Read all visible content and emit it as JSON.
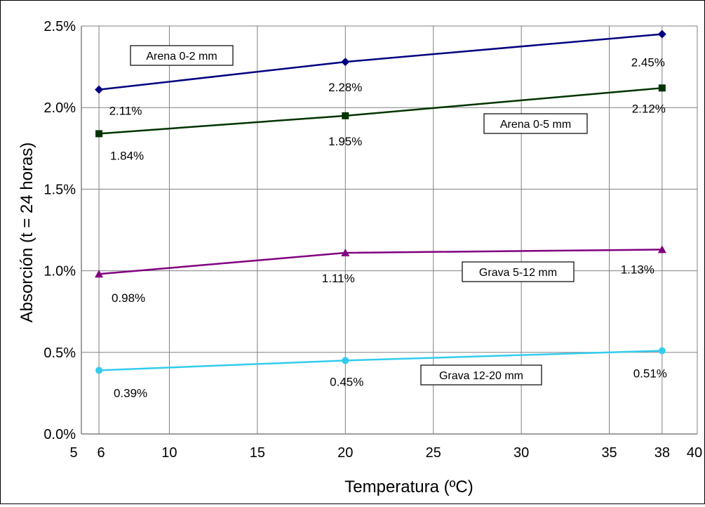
{
  "chart_data": {
    "type": "line",
    "title": "",
    "xlabel": "Temperatura (ºC)",
    "ylabel": "Absorción (t = 24 horas)",
    "xlim": [
      5,
      40
    ],
    "ylim": [
      0,
      2.5
    ],
    "x_ticks": [
      "5",
      "6",
      "10",
      "15",
      "20",
      "25",
      "30",
      "35",
      "38",
      "40"
    ],
    "y_ticks": [
      "0.0%",
      "0.5%",
      "1.0%",
      "1.5%",
      "2.0%",
      "2.5%"
    ],
    "grid": true,
    "legend": "none",
    "x": [
      6,
      20,
      38
    ],
    "series": [
      {
        "name": "Arena 0-2 mm",
        "values": [
          2.11,
          2.28,
          2.45
        ],
        "labels": [
          "2.11%",
          "2.28%",
          "2.45%"
        ],
        "color": "#000080",
        "marker": "diamond"
      },
      {
        "name": "Arena 0-5 mm",
        "values": [
          1.84,
          1.95,
          2.12
        ],
        "labels": [
          "1.84%",
          "1.95%",
          "2.12%"
        ],
        "color": "#003300",
        "marker": "square"
      },
      {
        "name": "Grava 5-12 mm",
        "values": [
          0.98,
          1.11,
          1.13
        ],
        "labels": [
          "0.98%",
          "1.11%",
          "1.13%"
        ],
        "color": "#800080",
        "marker": "triangle"
      },
      {
        "name": "Grava 12-20 mm",
        "values": [
          0.39,
          0.45,
          0.51
        ],
        "labels": [
          "0.39%",
          "0.45%",
          "0.51%"
        ],
        "color": "#33CCEE",
        "marker": "circle"
      }
    ]
  }
}
